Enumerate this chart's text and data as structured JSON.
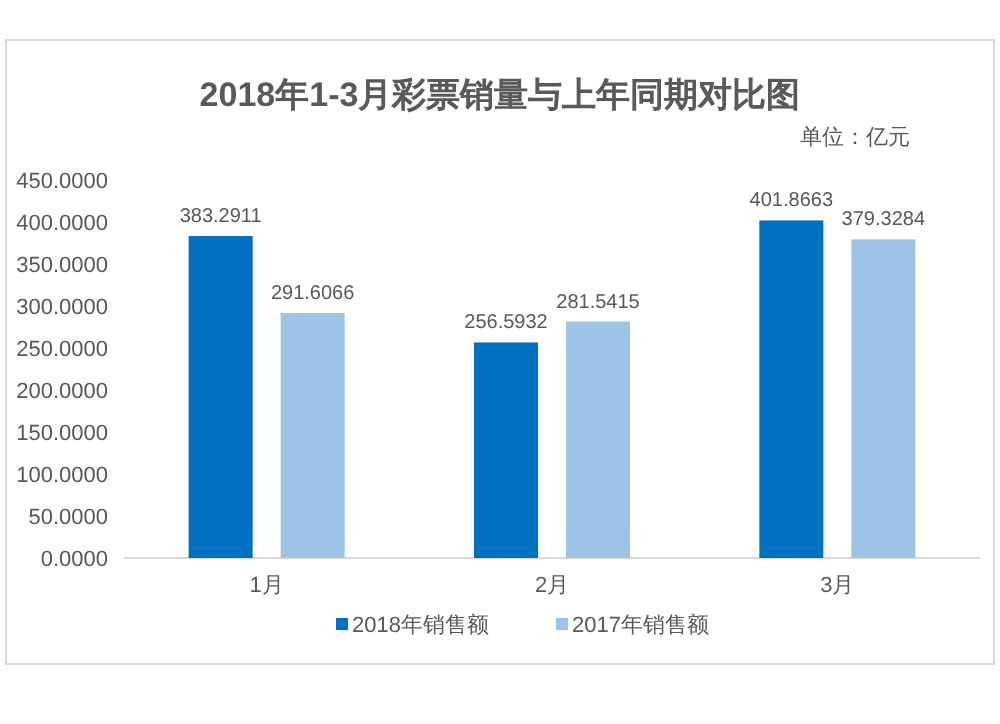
{
  "chart_data": {
    "type": "bar",
    "title": "2018年1-3月彩票销量与上年同期对比图",
    "subtitle": "单位：亿元",
    "categories": [
      "1月",
      "2月",
      "3月"
    ],
    "series": [
      {
        "name": "2018年销售额",
        "color": "#0070c0",
        "values": [
          383.2911,
          256.5932,
          401.8663
        ]
      },
      {
        "name": "2017年销售额",
        "color": "#9dc3e6",
        "values": [
          291.6066,
          281.5415,
          379.3284
        ]
      }
    ],
    "ylim": [
      0,
      450
    ],
    "yticks": [
      {
        "value": 0,
        "label": "0.0000"
      },
      {
        "value": 50,
        "label": "50.0000"
      },
      {
        "value": 100,
        "label": "100.0000"
      },
      {
        "value": 150,
        "label": "150.0000"
      },
      {
        "value": 200,
        "label": "200.0000"
      },
      {
        "value": 250,
        "label": "250.0000"
      },
      {
        "value": 300,
        "label": "300.0000"
      },
      {
        "value": 350,
        "label": "350.0000"
      },
      {
        "value": 400,
        "label": "400.0000"
      },
      {
        "value": 450,
        "label": "450.0000"
      }
    ],
    "data_labels": true,
    "legend": "bottom",
    "grid": false
  }
}
